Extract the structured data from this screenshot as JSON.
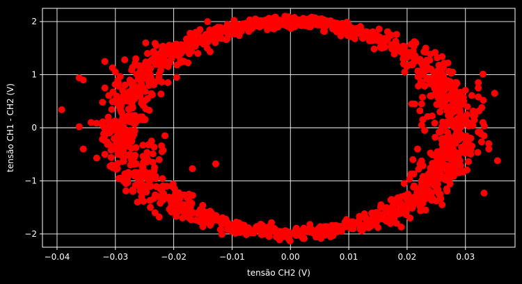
{
  "chart_data": {
    "type": "scatter",
    "title": "",
    "xlabel": "tensão CH2 (V)",
    "ylabel": "tensão CH1 - CH2 (V)",
    "xlim": [
      -0.0425,
      0.0385
    ],
    "ylim": [
      -2.25,
      2.25
    ],
    "xticks": [
      -0.04,
      -0.03,
      -0.02,
      -0.01,
      0.0,
      0.01,
      0.02,
      0.03
    ],
    "xtick_labels": [
      "−0.04",
      "−0.03",
      "−0.02",
      "−0.01",
      "0.00",
      "0.01",
      "0.02",
      "0.03"
    ],
    "yticks": [
      -2,
      -1,
      0,
      1,
      2
    ],
    "ytick_labels": [
      "−2",
      "−1",
      "0",
      "1",
      "2"
    ],
    "grid": true,
    "background": "#000000",
    "foreground": "#ffffff",
    "marker_color": "#ff0000",
    "shape": "ellipse",
    "center": [
      0.0,
      0.0
    ],
    "semi_axes": [
      0.0285,
      1.98
    ],
    "series": [
      {
        "color": "#ff0000",
        "points": [
          [
            -0.0392,
            0.34
          ],
          [
            -0.0362,
            0.94
          ],
          [
            -0.0355,
            0.9
          ],
          [
            -0.0362,
            0.02
          ],
          [
            -0.0355,
            -0.4
          ],
          [
            -0.0332,
            -0.57
          ],
          [
            -0.0318,
            1.25
          ],
          [
            -0.0322,
            0.48
          ],
          [
            -0.0305,
            1.13
          ],
          [
            -0.0318,
            0.75
          ],
          [
            -0.03,
            1.05
          ],
          [
            -0.0295,
            0.85
          ],
          [
            -0.0312,
            0.2
          ],
          [
            -0.031,
            -0.1
          ],
          [
            -0.03,
            -0.2
          ],
          [
            -0.0318,
            -0.5
          ],
          [
            -0.0305,
            -0.75
          ],
          [
            -0.0292,
            -0.95
          ],
          [
            -0.0298,
            0.6
          ],
          [
            -0.029,
            0.3
          ],
          [
            -0.0282,
            -1.05
          ],
          [
            -0.027,
            -1.2
          ],
          [
            -0.0265,
            1.3
          ],
          [
            -0.0245,
            1.4
          ],
          [
            -0.023,
            1.55
          ],
          [
            -0.0222,
            1.2
          ],
          [
            -0.021,
            0.85
          ],
          [
            -0.0195,
            0.95
          ],
          [
            -0.022,
            -0.45
          ],
          [
            -0.0225,
            -0.6
          ],
          [
            -0.0212,
            -1.1
          ],
          [
            -0.02,
            -1.35
          ],
          [
            -0.02,
            -1.55
          ],
          [
            -0.0185,
            -1.7
          ],
          [
            -0.0168,
            -0.77
          ],
          [
            -0.0128,
            -0.68
          ],
          [
            -0.0172,
            1.78
          ],
          [
            -0.0155,
            1.85
          ],
          [
            -0.0142,
            2.0
          ],
          [
            -0.0108,
            1.95
          ],
          [
            -0.007,
            1.99
          ],
          [
            -0.003,
            2.01
          ],
          [
            0.0005,
            2.03
          ],
          [
            0.004,
            2.01
          ],
          [
            0.008,
            1.97
          ],
          [
            0.012,
            1.91
          ],
          [
            0.0152,
            1.86
          ],
          [
            0.0182,
            1.76
          ],
          [
            0.0215,
            1.6
          ],
          [
            0.0232,
            1.5
          ],
          [
            0.0248,
            1.42
          ],
          [
            0.026,
            1.34
          ],
          [
            0.027,
            1.22
          ],
          [
            0.0278,
            1.05
          ],
          [
            0.0285,
            0.85
          ],
          [
            0.029,
            0.55
          ],
          [
            0.0292,
            0.2
          ],
          [
            0.029,
            -0.2
          ],
          [
            0.0286,
            -0.55
          ],
          [
            0.0278,
            -0.9
          ],
          [
            0.0268,
            -1.15
          ],
          [
            0.025,
            -1.38
          ],
          [
            0.0232,
            -1.55
          ],
          [
            0.0205,
            -1.7
          ],
          [
            0.0182,
            -1.8
          ],
          [
            0.015,
            -1.88
          ],
          [
            0.012,
            -1.92
          ],
          [
            0.008,
            -1.96
          ],
          [
            0.004,
            -1.99
          ],
          [
            0.0,
            -2.0
          ],
          [
            -0.004,
            -1.99
          ],
          [
            -0.008,
            -1.96
          ],
          [
            -0.012,
            -1.92
          ],
          [
            -0.015,
            -1.86
          ],
          [
            -0.005,
            -1.93
          ],
          [
            0.006,
            -1.9
          ],
          [
            0.0208,
            0.45
          ],
          [
            0.0222,
            0.32
          ],
          [
            0.0225,
            0.05
          ],
          [
            0.023,
            -0.05
          ],
          [
            0.0248,
            -0.18
          ],
          [
            0.0218,
            -0.4
          ],
          [
            0.021,
            -0.6
          ],
          [
            0.0225,
            0.45
          ],
          [
            0.0262,
            0.8
          ],
          [
            0.0228,
            1.0
          ],
          [
            0.0245,
            1.05
          ],
          [
            0.033,
            1.01
          ],
          [
            0.0322,
            0.85
          ],
          [
            0.0322,
            0.75
          ],
          [
            0.0322,
            0.58
          ],
          [
            0.0328,
            0.38
          ],
          [
            0.033,
            0.1
          ],
          [
            0.0325,
            -0.08
          ],
          [
            0.0332,
            -0.15
          ],
          [
            0.034,
            -0.3
          ],
          [
            0.034,
            -0.4
          ],
          [
            0.035,
            0.65
          ],
          [
            0.0355,
            -0.62
          ],
          [
            0.0332,
            -1.23
          ],
          [
            0.026,
            -1.45
          ],
          [
            0.024,
            -0.95
          ],
          [
            0.0195,
            -1.05
          ],
          [
            0.019,
            -1.3
          ],
          [
            0.0182,
            -1.57
          ],
          [
            0.019,
            -1.87
          ],
          [
            0.017,
            -1.7
          ],
          [
            0.0145,
            -1.75
          ],
          [
            -0.0248,
            1.6
          ],
          [
            -0.0255,
            1.15
          ],
          [
            -0.024,
            1.0
          ],
          [
            -0.0262,
            -1.4
          ],
          [
            -0.024,
            -1.5
          ],
          [
            -0.0232,
            -1.6
          ],
          [
            -0.0225,
            -1.68
          ],
          [
            -0.0215,
            -0.15
          ],
          [
            -0.0238,
            -0.25
          ],
          [
            -0.0245,
            0.55
          ],
          [
            -0.0268,
            -0.85
          ],
          [
            -0.0265,
            0.1
          ],
          [
            -0.0275,
            0.9
          ],
          [
            -0.0268,
            0.6
          ],
          [
            0.026,
            0.4
          ],
          [
            0.0268,
            -0.3
          ],
          [
            0.0275,
            -0.6
          ],
          [
            0.0282,
            0.7
          ],
          [
            -0.006,
            2.05
          ],
          [
            0.0095,
            -1.85
          ]
        ]
      }
    ]
  }
}
